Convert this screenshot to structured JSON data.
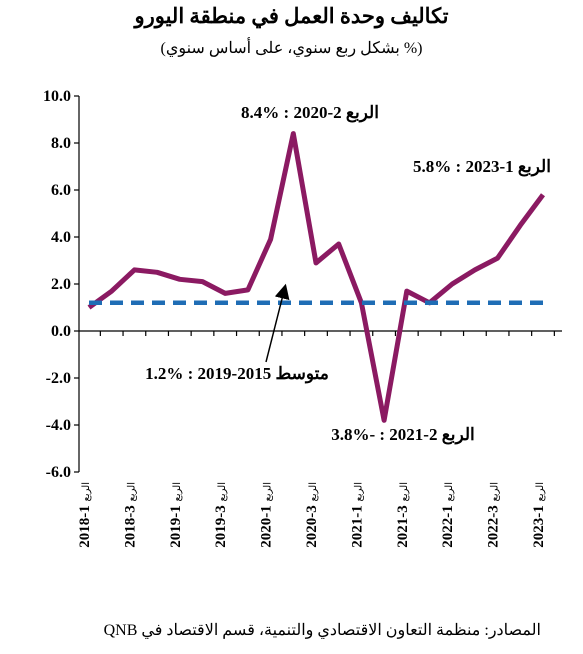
{
  "chart_data": {
    "type": "line",
    "title": "تكاليف وحدة العمل في منطقة اليورو",
    "subtitle": "(% بشكل ربع سنوي، على أساس سنوي)",
    "source": "المصادر: منظمة التعاون الاقتصادي والتنمية، قسم الاقتصاد في QNB",
    "ylim": [
      -6.0,
      10.0
    ],
    "yticks": [
      "10.0",
      "8.0",
      "6.0",
      "4.0",
      "2.0",
      "0.0",
      "-2.0",
      "-4.0",
      "-6.0"
    ],
    "ytick_values": [
      10,
      8,
      6,
      4,
      2,
      0,
      -2,
      -4,
      -6
    ],
    "categories": [
      "2018-1",
      "2018-2",
      "2018-3",
      "2018-4",
      "2019-1",
      "2019-2",
      "2019-3",
      "2019-4",
      "2020-1",
      "2020-2",
      "2020-3",
      "2020-4",
      "2021-1",
      "2021-2",
      "2021-3",
      "2021-4",
      "2022-1",
      "2022-2",
      "2022-3",
      "2022-4",
      "2023-1"
    ],
    "xtick_labels": [
      {
        "year": "2018-1",
        "q": "الربع"
      },
      {
        "year": "2018-3",
        "q": "الربع"
      },
      {
        "year": "2019-1",
        "q": "الربع"
      },
      {
        "year": "2019-3",
        "q": "الربع"
      },
      {
        "year": "2020-1",
        "q": "الربع"
      },
      {
        "year": "2020-3",
        "q": "الربع"
      },
      {
        "year": "2021-1",
        "q": "الربع"
      },
      {
        "year": "2021-3",
        "q": "الربع"
      },
      {
        "year": "2022-1",
        "q": "الربع"
      },
      {
        "year": "2022-3",
        "q": "الربع"
      },
      {
        "year": "2023-1",
        "q": "الربع"
      }
    ],
    "xtick_indices": [
      0,
      2,
      4,
      6,
      8,
      10,
      12,
      14,
      16,
      18,
      20
    ],
    "series": [
      {
        "values": [
          1.0,
          1.7,
          2.6,
          2.5,
          2.2,
          2.1,
          1.6,
          1.75,
          3.9,
          8.4,
          2.9,
          3.7,
          1.2,
          -3.8,
          1.7,
          1.2,
          2.0,
          2.6,
          3.1,
          4.5,
          5.8
        ],
        "color": "#8B1A62"
      },
      {
        "values": [
          1.2,
          1.2,
          1.2,
          1.2,
          1.2,
          1.2,
          1.2,
          1.2,
          1.2,
          1.2,
          1.2,
          1.2,
          1.2,
          1.2,
          1.2,
          1.2,
          1.2,
          1.2,
          1.2,
          1.2,
          1.2
        ],
        "color": "#1F6DB5",
        "style": "dashed"
      }
    ],
    "annotations": {
      "peak": "الربع 2-2020 : %8.4",
      "trough": "الربع 2-2021 : -%3.8",
      "latest": "الربع 1-2023 : %5.8",
      "average": "متوسط 2015-2019 : %1.2"
    },
    "grid": false
  }
}
